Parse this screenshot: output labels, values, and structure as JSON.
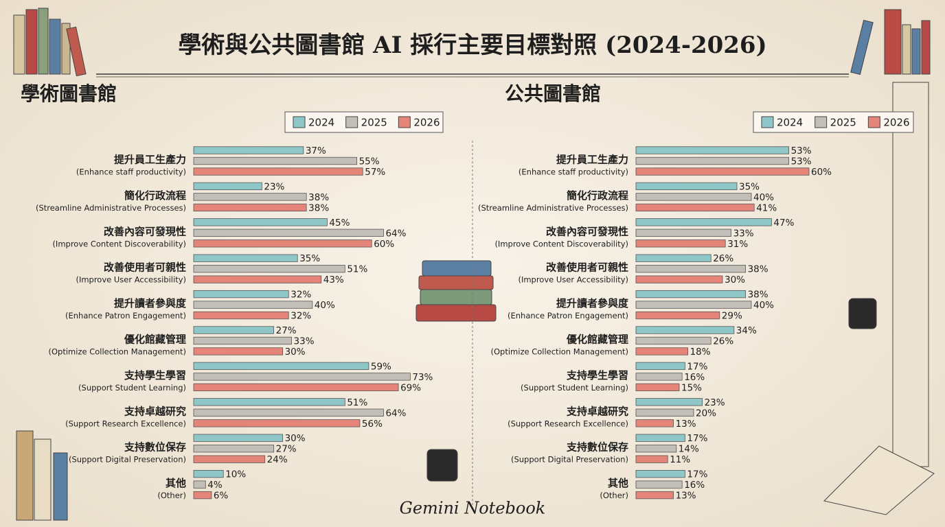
{
  "title": "學術與公共圖書館 AI 採行主要目標對照 (2024-2026)",
  "footer": "Gemini Notebook",
  "chart_data": [
    {
      "type": "bar",
      "orientation": "horizontal",
      "title": "學術圖書館",
      "categories": [
        "提升員工生產力",
        "簡化行政流程",
        "改善內容可發現性",
        "改善使用者可親性",
        "提升讀者參與度",
        "優化館藏管理",
        "支持學生學習",
        "支持卓越研究",
        "支持數位保存",
        "其他"
      ],
      "categories_en": [
        "(Enhance staff productivity)",
        "(Streamline Administrative Processes)",
        "(Improve Content Discoverability)",
        "(Improve User Accessibility)",
        "(Enhance Patron Engagement)",
        "(Optimize Collection Management)",
        "(Support Student Learning)",
        "(Support Research Excellence)",
        "(Support Digital Preservation)",
        "(Other)"
      ],
      "series": [
        {
          "name": "2024",
          "color": "#8fc6c8",
          "values": [
            37,
            23,
            45,
            35,
            32,
            27,
            59,
            51,
            30,
            10
          ],
          "value_labels": [
            "37%",
            "23%",
            "45%",
            "35%",
            "32%",
            "27%",
            "59%",
            "51%",
            "30%",
            "10%"
          ]
        },
        {
          "name": "2025",
          "color": "#c2beb8",
          "values": [
            55,
            38,
            64,
            51,
            40,
            33,
            73,
            64,
            27,
            4
          ],
          "value_labels": [
            "55%",
            "38%",
            "64%",
            "51%",
            "40%",
            "33%",
            "73%",
            "64%",
            "27%",
            "4%"
          ]
        },
        {
          "name": "2026",
          "color": "#e5857a",
          "values": [
            57,
            38,
            60,
            43,
            32,
            30,
            69,
            56,
            24,
            6
          ],
          "value_labels": [
            "57%",
            "38%",
            "60%",
            "43%",
            "32%",
            "30%",
            "69%",
            "56%",
            "24%",
            "6%"
          ]
        }
      ]
    },
    {
      "type": "bar",
      "orientation": "horizontal",
      "title": "公共圖書館",
      "categories": [
        "提升員工生產力",
        "簡化行政流程",
        "改善內容可發現性",
        "改善使用者可親性",
        "提升讀者參與度",
        "優化館藏管理",
        "支持學生學習",
        "支持卓越研究",
        "支持數位保存",
        "其他"
      ],
      "categories_en": [
        "(Enhance staff productivity)",
        "(Streamline Administrative Processes)",
        "(Improve Content Discoverability)",
        "(Improve User Accessibility)",
        "(Enhance Patron Engagement)",
        "(Optimize Collection Management)",
        "(Support Student Learning)",
        "(Support Research Excellence)",
        "(Support Digital Preservation)",
        "(Other)"
      ],
      "series": [
        {
          "name": "2024",
          "color": "#8fc6c8",
          "values": [
            53,
            35,
            47,
            26,
            38,
            34,
            17,
            23,
            17,
            17
          ],
          "value_labels": [
            "53%",
            "35%",
            "47%",
            "26%",
            "38%",
            "34%",
            "17%",
            "23%",
            "17%",
            "17%"
          ]
        },
        {
          "name": "2025",
          "color": "#c2beb8",
          "values": [
            53,
            40,
            33,
            38,
            40,
            26,
            16,
            20,
            14,
            16
          ],
          "value_labels": [
            "53%",
            "40%",
            "33%",
            "38%",
            "40%",
            "26%",
            "16%",
            "20%",
            "14%",
            "16%"
          ]
        },
        {
          "name": "2026",
          "color": "#e5857a",
          "values": [
            60,
            41,
            31,
            30,
            29,
            18,
            15,
            13,
            11,
            13
          ],
          "value_labels": [
            "60%",
            "41%",
            "31%",
            "30%",
            "29%",
            "18%",
            "15%",
            "13%",
            "11%",
            "13%"
          ]
        }
      ]
    }
  ]
}
